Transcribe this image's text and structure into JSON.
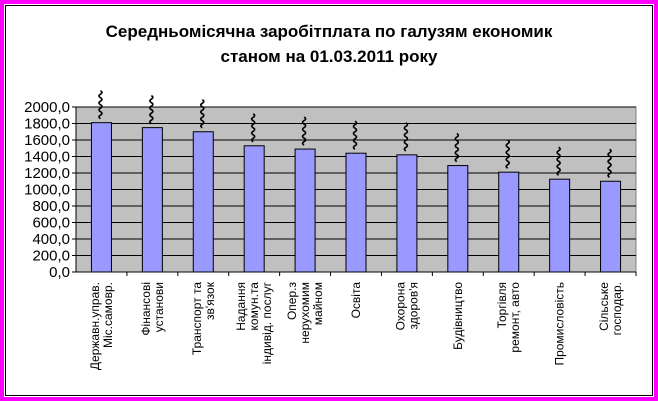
{
  "chart_data": {
    "type": "bar",
    "title_lines": [
      "Середньомісячна заробітплата по галузям економик",
      "станом на 01.03.2011 року"
    ],
    "categories": [
      [
        "Державн.управ.",
        "Міс.самовр."
      ],
      [
        "Фінансові",
        "установи"
      ],
      [
        "Транспорт та",
        "зв'язок"
      ],
      [
        "Надання",
        "комун.та",
        "індивід. послуг"
      ],
      [
        "Опер.з",
        "нерухомим",
        "майном"
      ],
      [
        "Освіта"
      ],
      [
        "Охорона",
        "здоров'я"
      ],
      [
        "Будівництво"
      ],
      [
        "Торгівля",
        "ремонт, авто"
      ],
      [
        "Промисловість"
      ],
      [
        "Сільське",
        "господар."
      ]
    ],
    "values": [
      1810,
      1750,
      1700,
      1530,
      1490,
      1440,
      1420,
      1290,
      1210,
      1125,
      1100
    ],
    "ylim": [
      0,
      2000
    ],
    "y_ticks": [
      "0,0",
      "200,0",
      "400,0",
      "600,0",
      "800,0",
      "1000,0",
      "1200,0",
      "1400,0",
      "1600,0",
      "1800,0",
      "2000,0"
    ],
    "grid": true,
    "colors": {
      "bar_fill": "#9999ff",
      "plot_bg": "#c0c0c0",
      "frame": "#ff00ff"
    }
  }
}
